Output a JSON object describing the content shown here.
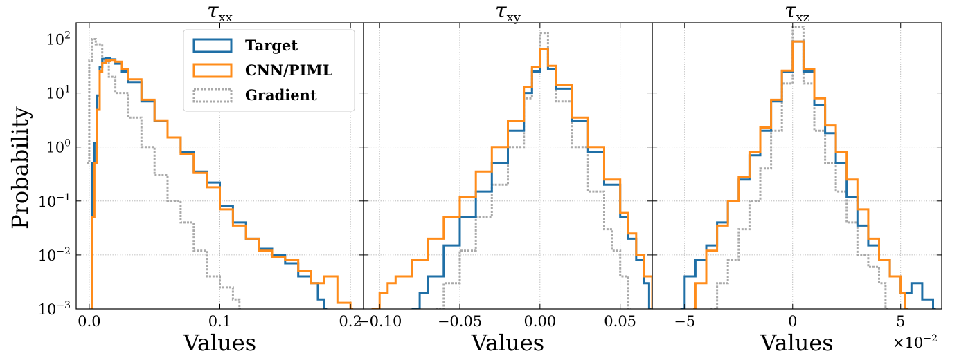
{
  "chart_data": {
    "type": "line",
    "drawstyle": "step histogram",
    "ylabel": "Probability",
    "yscale": "log",
    "ylim": [
      0.001,
      200
    ],
    "y_ticks": [
      {
        "value": 0.001,
        "mant": "10",
        "exp": "−3"
      },
      {
        "value": 0.01,
        "mant": "10",
        "exp": "−2"
      },
      {
        "value": 0.1,
        "mant": "10",
        "exp": "−1"
      },
      {
        "value": 1,
        "mant": "10",
        "exp": "0"
      },
      {
        "value": 10,
        "mant": "10",
        "exp": "1"
      },
      {
        "value": 100,
        "mant": "10",
        "exp": "2"
      }
    ],
    "grid": true,
    "legend": {
      "placement": "top-right of first panel",
      "entries": [
        {
          "label": "Target",
          "color": "#1f6fa6",
          "style": "solid"
        },
        {
          "label": "CNN/PIML",
          "color": "#ff8c1a",
          "style": "solid"
        },
        {
          "label": "Gradient",
          "color": "#aaaaaa",
          "style": "dotted"
        }
      ]
    },
    "panels": [
      {
        "title": "τ",
        "title_sub": "xx",
        "xlabel": "Values",
        "xlim": [
          -0.01,
          0.21
        ],
        "x_ticks": [
          {
            "value": 0.0,
            "label": "0.0"
          },
          {
            "value": 0.1,
            "label": "0.1"
          },
          {
            "value": 0.2,
            "label": "0.2"
          }
        ],
        "series": [
          {
            "name": "Target",
            "color": "#1f6fa6",
            "style": "solid",
            "points": [
              [
                0.001,
                0.001
              ],
              [
                0.002,
                0.5
              ],
              [
                0.004,
                1.2
              ],
              [
                0.006,
                9
              ],
              [
                0.008,
                30
              ],
              [
                0.01,
                43
              ],
              [
                0.013,
                44
              ],
              [
                0.016,
                42
              ],
              [
                0.02,
                35
              ],
              [
                0.025,
                25
              ],
              [
                0.03,
                16
              ],
              [
                0.04,
                7
              ],
              [
                0.05,
                3
              ],
              [
                0.06,
                1.5
              ],
              [
                0.07,
                0.8
              ],
              [
                0.08,
                0.35
              ],
              [
                0.09,
                0.22
              ],
              [
                0.1,
                0.08
              ],
              [
                0.11,
                0.04
              ],
              [
                0.12,
                0.02
              ],
              [
                0.13,
                0.013
              ],
              [
                0.14,
                0.01
              ],
              [
                0.15,
                0.007
              ],
              [
                0.16,
                0.004
              ],
              [
                0.17,
                0.003
              ],
              [
                0.175,
                0.0015
              ],
              [
                0.18,
                0.001
              ]
            ]
          },
          {
            "name": "CNN/PIML",
            "color": "#ff8c1a",
            "style": "solid",
            "points": [
              [
                0.001,
                0.001
              ],
              [
                0.002,
                0.05
              ],
              [
                0.004,
                0.5
              ],
              [
                0.006,
                5
              ],
              [
                0.008,
                25
              ],
              [
                0.01,
                36
              ],
              [
                0.013,
                40
              ],
              [
                0.016,
                41
              ],
              [
                0.02,
                38
              ],
              [
                0.025,
                28
              ],
              [
                0.03,
                18
              ],
              [
                0.04,
                7.5
              ],
              [
                0.05,
                3.1
              ],
              [
                0.06,
                1.5
              ],
              [
                0.07,
                0.75
              ],
              [
                0.08,
                0.33
              ],
              [
                0.09,
                0.18
              ],
              [
                0.1,
                0.07
              ],
              [
                0.11,
                0.035
              ],
              [
                0.12,
                0.02
              ],
              [
                0.13,
                0.012
              ],
              [
                0.14,
                0.009
              ],
              [
                0.15,
                0.008
              ],
              [
                0.16,
                0.005
              ],
              [
                0.17,
                0.003
              ],
              [
                0.18,
                0.004
              ],
              [
                0.19,
                0.0013
              ],
              [
                0.2,
                0.001
              ]
            ]
          },
          {
            "name": "Gradient",
            "color": "#aaaaaa",
            "style": "dotted",
            "points": [
              [
                -0.002,
                0.5
              ],
              [
                0.0,
                40
              ],
              [
                0.002,
                100
              ],
              [
                0.005,
                80
              ],
              [
                0.01,
                40
              ],
              [
                0.015,
                20
              ],
              [
                0.02,
                10
              ],
              [
                0.03,
                3.5
              ],
              [
                0.04,
                1
              ],
              [
                0.05,
                0.3
              ],
              [
                0.06,
                0.1
              ],
              [
                0.07,
                0.04
              ],
              [
                0.08,
                0.012
              ],
              [
                0.09,
                0.004
              ],
              [
                0.1,
                0.0025
              ],
              [
                0.11,
                0.0015
              ],
              [
                0.115,
                0.001
              ]
            ]
          }
        ]
      },
      {
        "title": "τ",
        "title_sub": "xy",
        "xlabel": "Values",
        "xlim": [
          -0.11,
          0.07
        ],
        "x_ticks": [
          {
            "value": -0.1,
            "label": "−0.10"
          },
          {
            "value": -0.05,
            "label": "−0.05"
          },
          {
            "value": 0.0,
            "label": "0.00"
          },
          {
            "value": 0.05,
            "label": "0.05"
          }
        ],
        "series": [
          {
            "name": "Target",
            "color": "#1f6fa6",
            "style": "solid",
            "points": [
              [
                -0.08,
                0.001
              ],
              [
                -0.075,
                0.002
              ],
              [
                -0.07,
                0.004
              ],
              [
                -0.06,
                0.015
              ],
              [
                -0.05,
                0.05
              ],
              [
                -0.04,
                0.15
              ],
              [
                -0.03,
                0.5
              ],
              [
                -0.02,
                2
              ],
              [
                -0.01,
                10
              ],
              [
                -0.005,
                25
              ],
              [
                0.0,
                65
              ],
              [
                0.005,
                28
              ],
              [
                0.01,
                12
              ],
              [
                0.02,
                3
              ],
              [
                0.03,
                0.8
              ],
              [
                0.04,
                0.2
              ],
              [
                0.05,
                0.05
              ],
              [
                0.055,
                0.02
              ],
              [
                0.06,
                0.008
              ],
              [
                0.065,
                0.003
              ],
              [
                0.068,
                0.001
              ]
            ]
          },
          {
            "name": "CNN/PIML",
            "color": "#ff8c1a",
            "style": "solid",
            "points": [
              [
                -0.105,
                0.001
              ],
              [
                -0.1,
                0.002
              ],
              [
                -0.095,
                0.003
              ],
              [
                -0.09,
                0.004
              ],
              [
                -0.08,
                0.008
              ],
              [
                -0.07,
                0.02
              ],
              [
                -0.06,
                0.05
              ],
              [
                -0.05,
                0.12
              ],
              [
                -0.04,
                0.35
              ],
              [
                -0.03,
                1
              ],
              [
                -0.02,
                3
              ],
              [
                -0.01,
                13
              ],
              [
                -0.005,
                30
              ],
              [
                0.0,
                65
              ],
              [
                0.005,
                32
              ],
              [
                0.01,
                14
              ],
              [
                0.02,
                3.5
              ],
              [
                0.03,
                1
              ],
              [
                0.04,
                0.25
              ],
              [
                0.05,
                0.06
              ],
              [
                0.055,
                0.025
              ],
              [
                0.06,
                0.01
              ],
              [
                0.065,
                0.004
              ],
              [
                0.07,
                0.001
              ]
            ]
          },
          {
            "name": "Gradient",
            "color": "#aaaaaa",
            "style": "dotted",
            "points": [
              [
                -0.065,
                0.001
              ],
              [
                -0.06,
                0.003
              ],
              [
                -0.05,
                0.012
              ],
              [
                -0.04,
                0.05
              ],
              [
                -0.03,
                0.2
              ],
              [
                -0.02,
                1
              ],
              [
                -0.01,
                8
              ],
              [
                -0.005,
                30
              ],
              [
                0.0,
                130
              ],
              [
                0.005,
                28
              ],
              [
                0.01,
                7
              ],
              [
                0.02,
                1
              ],
              [
                0.03,
                0.15
              ],
              [
                0.04,
                0.03
              ],
              [
                0.045,
                0.012
              ],
              [
                0.05,
                0.004
              ],
              [
                0.055,
                0.001
              ]
            ]
          }
        ]
      },
      {
        "title": "τ",
        "title_sub": "xz",
        "xlabel": "Values",
        "x_multiplier": {
          "mant": "×10",
          "exp": "−2"
        },
        "xlim": [
          -6.5,
          6.9
        ],
        "x_ticks": [
          {
            "value": -5,
            "label": "−5"
          },
          {
            "value": 0,
            "label": "0"
          },
          {
            "value": 5,
            "label": "5"
          }
        ],
        "series": [
          {
            "name": "Target",
            "color": "#1f6fa6",
            "style": "solid",
            "points": [
              [
                -5.2,
                0.001
              ],
              [
                -5.0,
                0.004
              ],
              [
                -4.5,
                0.008
              ],
              [
                -4.0,
                0.015
              ],
              [
                -3.5,
                0.04
              ],
              [
                -3.0,
                0.1
              ],
              [
                -2.5,
                0.25
              ],
              [
                -2.0,
                0.7
              ],
              [
                -1.5,
                2
              ],
              [
                -1.0,
                7
              ],
              [
                -0.5,
                25
              ],
              [
                0.0,
                90
              ],
              [
                0.5,
                25
              ],
              [
                1.0,
                6
              ],
              [
                1.5,
                1.8
              ],
              [
                2.0,
                0.5
              ],
              [
                2.5,
                0.12
              ],
              [
                3.0,
                0.035
              ],
              [
                3.5,
                0.015
              ],
              [
                4.0,
                0.008
              ],
              [
                4.5,
                0.004
              ],
              [
                5.0,
                0.002
              ],
              [
                5.5,
                0.003
              ],
              [
                6.0,
                0.0015
              ],
              [
                6.5,
                0.001
              ]
            ]
          },
          {
            "name": "CNN/PIML",
            "color": "#ff8c1a",
            "style": "solid",
            "points": [
              [
                -4.6,
                0.001
              ],
              [
                -4.5,
                0.003
              ],
              [
                -4.0,
                0.012
              ],
              [
                -3.5,
                0.035
              ],
              [
                -3.0,
                0.1
              ],
              [
                -2.5,
                0.28
              ],
              [
                -2.0,
                0.8
              ],
              [
                -1.5,
                2.3
              ],
              [
                -1.0,
                7.5
              ],
              [
                -0.5,
                26
              ],
              [
                0.0,
                90
              ],
              [
                0.5,
                28
              ],
              [
                1.0,
                8
              ],
              [
                1.5,
                2.5
              ],
              [
                2.0,
                0.8
              ],
              [
                2.5,
                0.25
              ],
              [
                3.0,
                0.07
              ],
              [
                3.5,
                0.02
              ],
              [
                4.0,
                0.008
              ],
              [
                4.5,
                0.004
              ],
              [
                5.0,
                0.002
              ],
              [
                5.2,
                0.001
              ]
            ]
          },
          {
            "name": "Gradient",
            "color": "#aaaaaa",
            "style": "dotted",
            "points": [
              [
                -3.8,
                0.001
              ],
              [
                -3.5,
                0.003
              ],
              [
                -3.0,
                0.008
              ],
              [
                -2.5,
                0.03
              ],
              [
                -2.0,
                0.1
              ],
              [
                -1.5,
                0.4
              ],
              [
                -1.0,
                2
              ],
              [
                -0.5,
                15
              ],
              [
                0.0,
                170
              ],
              [
                0.5,
                15
              ],
              [
                1.0,
                2
              ],
              [
                1.5,
                0.5
              ],
              [
                2.0,
                0.15
              ],
              [
                2.5,
                0.04
              ],
              [
                3.0,
                0.01
              ],
              [
                3.5,
                0.006
              ],
              [
                4.0,
                0.003
              ],
              [
                4.3,
                0.001
              ]
            ]
          }
        ]
      }
    ]
  }
}
